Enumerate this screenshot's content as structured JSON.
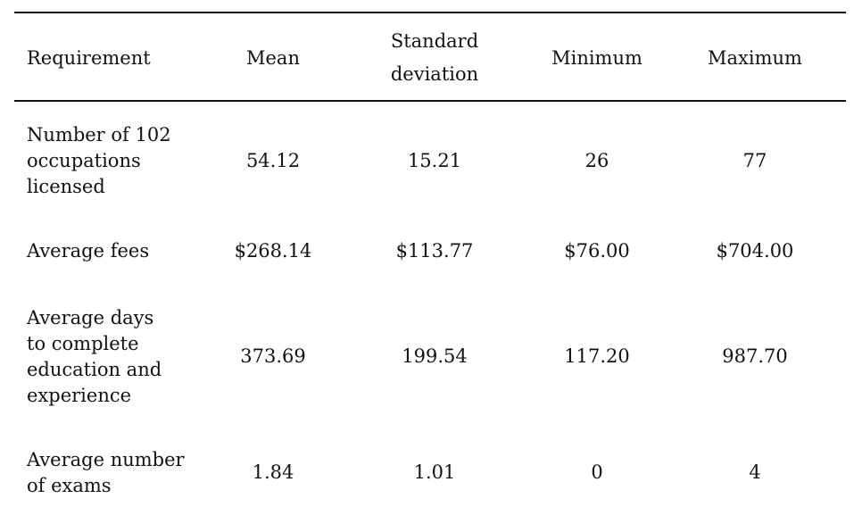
{
  "table": {
    "headers": {
      "requirement": "Requirement",
      "mean": "Mean",
      "sd_line1": "Standard",
      "sd_line2": "deviation",
      "minimum": "Minimum",
      "maximum": "Maximum"
    },
    "rows": [
      {
        "label_lines": [
          "Number of 102",
          "occupations",
          "licensed"
        ],
        "mean": "54.12",
        "sd": "15.21",
        "min": "26",
        "max": "77"
      },
      {
        "label_lines": [
          "Average fees"
        ],
        "mean": "$268.14",
        "sd": "$113.77",
        "min": "$76.00",
        "max": "$704.00"
      },
      {
        "label_lines": [
          "Average days",
          "to complete",
          "education and",
          "experience"
        ],
        "mean": "373.69",
        "sd": "199.54",
        "min": "117.20",
        "max": "987.70"
      },
      {
        "label_lines": [
          "Average number",
          "of exams"
        ],
        "mean": "1.84",
        "sd": "1.01",
        "min": "0",
        "max": "4"
      }
    ]
  }
}
